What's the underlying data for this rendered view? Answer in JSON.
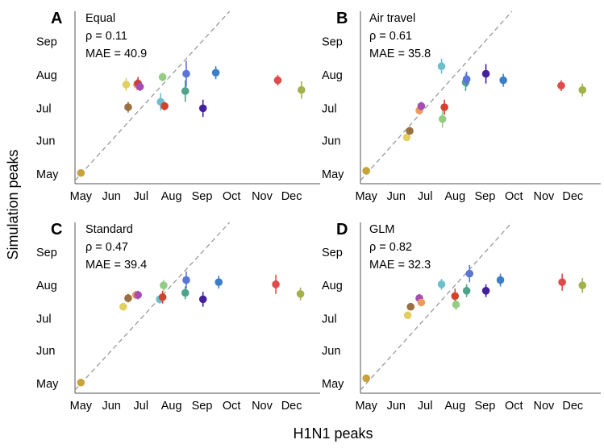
{
  "figure": {
    "ylabel": "Simulation peaks",
    "xlabel": "H1N1 peaks"
  },
  "months": [
    "May",
    "Jun",
    "Jul",
    "Aug",
    "Sep",
    "Oct",
    "Nov",
    "Dec"
  ],
  "chart_data": [
    {
      "type": "scatter",
      "panel_letter": "A",
      "title": "Equal",
      "stats": [
        "ρ = 0.11",
        "MAE = 40.9"
      ],
      "x_ticks": [
        "May",
        "Jun",
        "Jul",
        "Aug",
        "Sep",
        "Oct",
        "Nov",
        "Dec"
      ],
      "y_ticks": [
        "May",
        "Jun",
        "Jul",
        "Aug",
        "Sep"
      ],
      "xlim": [
        "Apr 25",
        "Dec 30"
      ],
      "ylim": [
        "Apr 22",
        "Sep 29"
      ],
      "reference_line": "y = x",
      "points": [
        {
          "x": "May 1",
          "y": "May 2",
          "err": [
            1,
            1
          ],
          "color": "#c9a23c"
        },
        {
          "x": "Jun 16",
          "y": "Jul 23",
          "err": [
            6,
            6
          ],
          "color": "#e2cf62"
        },
        {
          "x": "Jun 18",
          "y": "Jul 2",
          "err": [
            5,
            5
          ],
          "color": "#9a7040"
        },
        {
          "x": "Jun 27",
          "y": "Jul 23",
          "err": [
            5,
            5
          ],
          "color": "#ef9a5c"
        },
        {
          "x": "Jun 28",
          "y": "Jul 24",
          "err": [
            6,
            6
          ],
          "color": "#c8403a"
        },
        {
          "x": "Jun 30",
          "y": "Jul 21",
          "err": [
            4,
            4
          ],
          "color": "#a64cb3"
        },
        {
          "x": "Jul 21",
          "y": "Jul 7",
          "err": [
            8,
            8
          ],
          "color": "#6cbfcc"
        },
        {
          "x": "Jul 23",
          "y": "Jul 30",
          "err": [
            4,
            4
          ],
          "color": "#95cc85"
        },
        {
          "x": "Jul 25",
          "y": "Jul 3",
          "err": [
            4,
            4
          ],
          "color": "#d5402f"
        },
        {
          "x": "Aug 15",
          "y": "Jul 17",
          "err": [
            10,
            10
          ],
          "color": "#4ea48a"
        },
        {
          "x": "Aug 16",
          "y": "Aug 2",
          "err": [
            12,
            12
          ],
          "color": "#5a74d8"
        },
        {
          "x": "Sep 2",
          "y": "Jul 1",
          "err": [
            8,
            8
          ],
          "color": "#43209e"
        },
        {
          "x": "Sep 15",
          "y": "Aug 3",
          "err": [
            6,
            6
          ],
          "color": "#3c7fc8"
        },
        {
          "x": "Nov 17",
          "y": "Jul 27",
          "err": [
            5,
            5
          ],
          "color": "#e04a4a"
        },
        {
          "x": "Dec 11",
          "y": "Jul 18",
          "err": [
            8,
            8
          ],
          "color": "#a3b04c"
        }
      ]
    },
    {
      "type": "scatter",
      "panel_letter": "B",
      "title": "Air travel",
      "stats": [
        "ρ = 0.61",
        "MAE = 35.8"
      ],
      "x_ticks": [
        "May",
        "Jun",
        "Jul",
        "Aug",
        "Sep",
        "Oct",
        "Nov",
        "Dec"
      ],
      "y_ticks": [
        "May",
        "Jun",
        "Jul",
        "Aug",
        "Sep"
      ],
      "xlim": [
        "Apr 25",
        "Dec 30"
      ],
      "ylim": [
        "Apr 22",
        "Sep 29"
      ],
      "reference_line": "y = x",
      "points": [
        {
          "x": "May 1",
          "y": "May 4",
          "err": [
            2,
            2
          ],
          "color": "#c9a23c"
        },
        {
          "x": "Jun 12",
          "y": "Jun 4",
          "err": [
            2,
            2
          ],
          "color": "#e2cf62"
        },
        {
          "x": "Jun 15",
          "y": "Jun 10",
          "err": [
            2,
            2
          ],
          "color": "#9a7040"
        },
        {
          "x": "Jun 25",
          "y": "Jun 29",
          "err": [
            3,
            3
          ],
          "color": "#ef9a5c"
        },
        {
          "x": "Jun 27",
          "y": "Jul 3",
          "err": [
            4,
            4
          ],
          "color": "#a64cb3"
        },
        {
          "x": "Jul 18",
          "y": "Aug 9",
          "err": [
            7,
            7
          ],
          "color": "#6cbfcc"
        },
        {
          "x": "Jul 19",
          "y": "Jun 21",
          "err": [
            8,
            8
          ],
          "color": "#95cc85"
        },
        {
          "x": "Jul 21",
          "y": "Jul 2",
          "err": [
            7,
            7
          ],
          "color": "#d5402f"
        },
        {
          "x": "Aug 12",
          "y": "Jul 25",
          "err": [
            8,
            8
          ],
          "color": "#4ea48a"
        },
        {
          "x": "Aug 13",
          "y": "Jul 28",
          "err": [
            7,
            7
          ],
          "color": "#5a74d8"
        },
        {
          "x": "Sep 2",
          "y": "Aug 2",
          "err": [
            9,
            9
          ],
          "color": "#43209e"
        },
        {
          "x": "Sep 20",
          "y": "Jul 27",
          "err": [
            6,
            6
          ],
          "color": "#3c7fc8"
        },
        {
          "x": "Nov 19",
          "y": "Jul 22",
          "err": [
            5,
            5
          ],
          "color": "#e04a4a"
        },
        {
          "x": "Dec 11",
          "y": "Jul 18",
          "err": [
            6,
            6
          ],
          "color": "#a3b04c"
        }
      ]
    },
    {
      "type": "scatter",
      "panel_letter": "C",
      "title": "Standard",
      "stats": [
        "ρ = 0.47",
        "MAE = 39.4"
      ],
      "x_ticks": [
        "May",
        "Jun",
        "Jul",
        "Aug",
        "Sep",
        "Oct",
        "Nov",
        "Dec"
      ],
      "y_ticks": [
        "May",
        "Jun",
        "Jul",
        "Aug",
        "Sep"
      ],
      "xlim": [
        "Apr 25",
        "Dec 30"
      ],
      "ylim": [
        "Apr 22",
        "Sep 29"
      ],
      "reference_line": "y = x",
      "points": [
        {
          "x": "May 1",
          "y": "May 2",
          "err": [
            3,
            3
          ],
          "color": "#c9a23c"
        },
        {
          "x": "Jun 13",
          "y": "Jul 12",
          "err": [
            3,
            3
          ],
          "color": "#e2cf62"
        },
        {
          "x": "Jun 18",
          "y": "Jul 20",
          "err": [
            4,
            4
          ],
          "color": "#9a7040"
        },
        {
          "x": "Jun 26",
          "y": "Jul 23",
          "err": [
            4,
            4
          ],
          "color": "#ef9a5c"
        },
        {
          "x": "Jun 28",
          "y": "Jul 23",
          "err": [
            4,
            4
          ],
          "color": "#a64cb3"
        },
        {
          "x": "Jul 20",
          "y": "Jul 19",
          "err": [
            4,
            4
          ],
          "color": "#6cbfcc"
        },
        {
          "x": "Jul 23",
          "y": "Jul 21",
          "err": [
            6,
            6
          ],
          "color": "#d5402f"
        },
        {
          "x": "Jul 24",
          "y": "Aug 1",
          "err": [
            5,
            5
          ],
          "color": "#95cc85"
        },
        {
          "x": "Aug 15",
          "y": "Jul 25",
          "err": [
            6,
            6
          ],
          "color": "#4ea48a"
        },
        {
          "x": "Aug 16",
          "y": "Aug 6",
          "err": [
            8,
            8
          ],
          "color": "#5a74d8"
        },
        {
          "x": "Sep 2",
          "y": "Jul 19",
          "err": [
            7,
            7
          ],
          "color": "#43209e"
        },
        {
          "x": "Sep 18",
          "y": "Aug 4",
          "err": [
            6,
            6
          ],
          "color": "#3c7fc8"
        },
        {
          "x": "Nov 15",
          "y": "Aug 2",
          "err": [
            9,
            9
          ],
          "color": "#e04a4a"
        },
        {
          "x": "Dec 10",
          "y": "Jul 24",
          "err": [
            6,
            6
          ],
          "color": "#a3b04c"
        }
      ]
    },
    {
      "type": "scatter",
      "panel_letter": "D",
      "title": "GLM",
      "stats": [
        "ρ = 0.82",
        "MAE = 32.3"
      ],
      "x_ticks": [
        "May",
        "Jun",
        "Jul",
        "Aug",
        "Sep",
        "Oct",
        "Nov",
        "Dec"
      ],
      "y_ticks": [
        "May",
        "Jun",
        "Jul",
        "Aug",
        "Sep"
      ],
      "xlim": [
        "Apr 25",
        "Dec 30"
      ],
      "ylim": [
        "Apr 22",
        "Sep 29"
      ],
      "reference_line": "y = x",
      "points": [
        {
          "x": "May 1",
          "y": "May 6",
          "err": [
            2,
            2
          ],
          "color": "#c9a23c"
        },
        {
          "x": "Jun 13",
          "y": "Jul 4",
          "err": [
            3,
            3
          ],
          "color": "#e2cf62"
        },
        {
          "x": "Jun 16",
          "y": "Jul 12",
          "err": [
            3,
            3
          ],
          "color": "#9a7040"
        },
        {
          "x": "Jun 25",
          "y": "Jul 20",
          "err": [
            4,
            4
          ],
          "color": "#a64cb3"
        },
        {
          "x": "Jun 27",
          "y": "Jul 16",
          "err": [
            3,
            3
          ],
          "color": "#ef9a5c"
        },
        {
          "x": "Jul 18",
          "y": "Aug 2",
          "err": [
            5,
            5
          ],
          "color": "#6cbfcc"
        },
        {
          "x": "Aug 1",
          "y": "Jul 22",
          "err": [
            7,
            7
          ],
          "color": "#d5402f"
        },
        {
          "x": "Aug 2",
          "y": "Jul 14",
          "err": [
            5,
            5
          ],
          "color": "#95cc85"
        },
        {
          "x": "Aug 13",
          "y": "Jul 27",
          "err": [
            6,
            6
          ],
          "color": "#4ea48a"
        },
        {
          "x": "Aug 16",
          "y": "Aug 12",
          "err": [
            8,
            8
          ],
          "color": "#5a74d8"
        },
        {
          "x": "Sep 2",
          "y": "Jul 27",
          "err": [
            6,
            6
          ],
          "color": "#43209e"
        },
        {
          "x": "Sep 17",
          "y": "Aug 6",
          "err": [
            6,
            6
          ],
          "color": "#3c7fc8"
        },
        {
          "x": "Nov 20",
          "y": "Aug 4",
          "err": [
            8,
            8
          ],
          "color": "#e04a4a"
        },
        {
          "x": "Dec 11",
          "y": "Aug 1",
          "err": [
            7,
            7
          ],
          "color": "#a3b04c"
        }
      ]
    }
  ]
}
